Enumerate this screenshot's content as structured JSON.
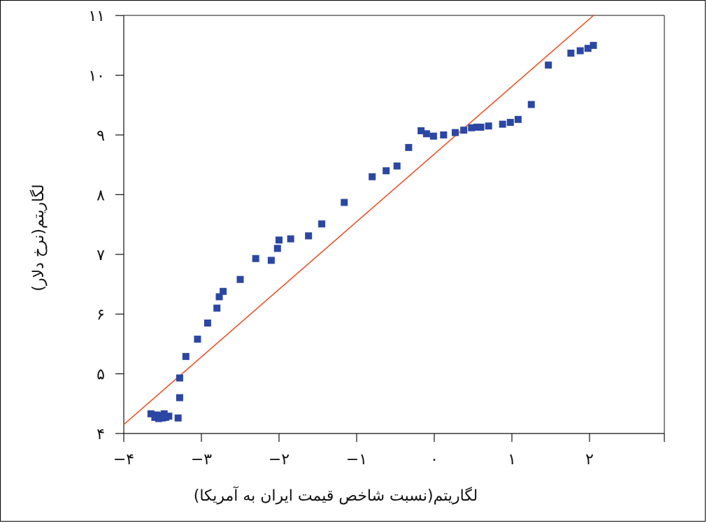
{
  "chart_data": {
    "type": "scatter",
    "title": "",
    "xlabel": "لگاریتم(نسبت شاخص قیمت ایران به آمریکا)",
    "ylabel": "لگاریتم(نرخ دلار)",
    "xlim": [
      -4,
      3
    ],
    "ylim": [
      4,
      11
    ],
    "x_ticks": [
      -4,
      -3,
      -2,
      -1,
      0,
      1,
      2
    ],
    "x_tick_labels": [
      "−۴",
      "−۳",
      "−۲",
      "−۱",
      "۰",
      "۱",
      "۲"
    ],
    "y_ticks": [
      4,
      5,
      6,
      7,
      8,
      9,
      10,
      11
    ],
    "y_tick_labels": [
      "۴",
      "۵",
      "۶",
      "۷",
      "۸",
      "۹",
      "۱۰",
      "۱۱"
    ],
    "grid": false,
    "legend": "none",
    "point_color": "#2b47a3",
    "line_color": "#e8542b",
    "reference_line": {
      "x": [
        -4,
        2.05
      ],
      "y": [
        4.15,
        11.0
      ]
    },
    "points": [
      {
        "x": -3.65,
        "y": 4.33
      },
      {
        "x": -3.6,
        "y": 4.27
      },
      {
        "x": -3.58,
        "y": 4.31
      },
      {
        "x": -3.55,
        "y": 4.25
      },
      {
        "x": -3.52,
        "y": 4.3
      },
      {
        "x": -3.5,
        "y": 4.26
      },
      {
        "x": -3.48,
        "y": 4.33
      },
      {
        "x": -3.46,
        "y": 4.27
      },
      {
        "x": -3.42,
        "y": 4.29
      },
      {
        "x": -3.3,
        "y": 4.26
      },
      {
        "x": -3.28,
        "y": 4.6
      },
      {
        "x": -3.28,
        "y": 4.93
      },
      {
        "x": -3.2,
        "y": 5.29
      },
      {
        "x": -3.05,
        "y": 5.58
      },
      {
        "x": -2.92,
        "y": 5.85
      },
      {
        "x": -2.8,
        "y": 6.1
      },
      {
        "x": -2.77,
        "y": 6.29
      },
      {
        "x": -2.72,
        "y": 6.38
      },
      {
        "x": -2.5,
        "y": 6.58
      },
      {
        "x": -2.3,
        "y": 6.93
      },
      {
        "x": -2.1,
        "y": 6.9
      },
      {
        "x": -2.02,
        "y": 7.1
      },
      {
        "x": -2.0,
        "y": 7.24
      },
      {
        "x": -1.85,
        "y": 7.26
      },
      {
        "x": -1.62,
        "y": 7.31
      },
      {
        "x": -1.45,
        "y": 7.51
      },
      {
        "x": -1.16,
        "y": 7.87
      },
      {
        "x": -0.8,
        "y": 8.3
      },
      {
        "x": -0.62,
        "y": 8.4
      },
      {
        "x": -0.48,
        "y": 8.48
      },
      {
        "x": -0.33,
        "y": 8.79
      },
      {
        "x": -0.17,
        "y": 9.07
      },
      {
        "x": -0.1,
        "y": 9.02
      },
      {
        "x": -0.01,
        "y": 8.98
      },
      {
        "x": 0.12,
        "y": 9.0
      },
      {
        "x": 0.27,
        "y": 9.04
      },
      {
        "x": 0.38,
        "y": 9.08
      },
      {
        "x": 0.48,
        "y": 9.12
      },
      {
        "x": 0.55,
        "y": 9.13
      },
      {
        "x": 0.6,
        "y": 9.13
      },
      {
        "x": 0.7,
        "y": 9.15
      },
      {
        "x": 0.88,
        "y": 9.18
      },
      {
        "x": 0.98,
        "y": 9.21
      },
      {
        "x": 1.08,
        "y": 9.26
      },
      {
        "x": 1.25,
        "y": 9.51
      },
      {
        "x": 1.47,
        "y": 10.17
      },
      {
        "x": 1.76,
        "y": 10.37
      },
      {
        "x": 1.88,
        "y": 10.41
      },
      {
        "x": 1.98,
        "y": 10.45
      },
      {
        "x": 2.05,
        "y": 10.5
      }
    ]
  }
}
